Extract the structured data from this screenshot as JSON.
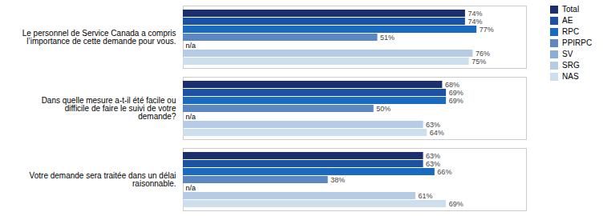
{
  "chart_data": {
    "type": "bar",
    "orientation": "horizontal",
    "categories": [
      "Le personnel de Service Canada a compris\nl’importance de cette demande pour vous.",
      "Dans quelle mesure a-t-il été facile ou\ndifficile de faire le suivi de votre\ndemande?",
      "Votre demande sera traitée dans un délai\nraisonnable."
    ],
    "series": [
      {
        "name": "Total",
        "color": "#1b2e6e",
        "values": [
          74,
          68,
          63
        ],
        "value_labels": [
          "74%",
          "68%",
          "63%"
        ]
      },
      {
        "name": "AE",
        "color": "#1c52a3",
        "values": [
          74,
          69,
          63
        ],
        "value_labels": [
          "74%",
          "69%",
          "63%"
        ]
      },
      {
        "name": "RPC",
        "color": "#1a6bbf",
        "values": [
          77,
          69,
          66
        ],
        "value_labels": [
          "77%",
          "69%",
          "66%"
        ]
      },
      {
        "name": "PPIRPC",
        "color": "#5c87c0",
        "values": [
          51,
          50,
          38
        ],
        "value_labels": [
          "51%",
          "50%",
          "38%"
        ]
      },
      {
        "name": "SV",
        "color": "#8aaed4",
        "values": [
          null,
          null,
          null
        ],
        "value_labels": [
          "n/a",
          "n/a",
          "n/a"
        ]
      },
      {
        "name": "SRG",
        "color": "#b5cce4",
        "values": [
          76,
          63,
          61
        ],
        "value_labels": [
          "76%",
          "63%",
          "61%"
        ]
      },
      {
        "name": "NAS",
        "color": "#cddeed",
        "values": [
          75,
          64,
          69
        ],
        "value_labels": [
          "75%",
          "64%",
          "69%"
        ]
      }
    ],
    "xlim": [
      0,
      90
    ],
    "tick_labels": "y",
    "data_labels": true,
    "legend": "upper right"
  }
}
